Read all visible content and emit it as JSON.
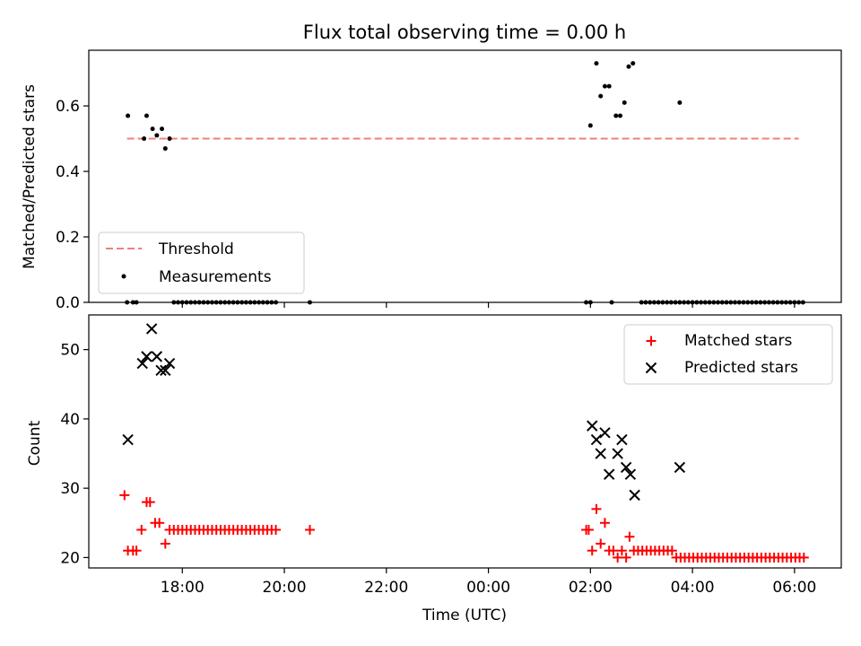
{
  "chart_data": [
    {
      "type": "scatter",
      "title": "Flux total observing time = 0.00 h",
      "ylabel": "Matched/Predicted stars",
      "ylim": [
        0,
        0.77
      ],
      "yticks": [
        0.0,
        0.2,
        0.4,
        0.6
      ],
      "ytick_labels": [
        "0.0",
        "0.2",
        "0.4",
        "0.6"
      ],
      "legend_position": "lower-left",
      "threshold": {
        "name": "Threshold",
        "value": 0.5,
        "x_range": [
          "16:55",
          "06:05"
        ],
        "color": "#f07f7f"
      },
      "series": [
        {
          "name": "Measurements",
          "color": "#000000",
          "points": [
            [
              "16:56",
              0.57
            ],
            [
              "17:15",
              0.5
            ],
            [
              "17:18",
              0.57
            ],
            [
              "17:25",
              0.53
            ],
            [
              "17:30",
              0.51
            ],
            [
              "17:36",
              0.53
            ],
            [
              "17:40",
              0.47
            ],
            [
              "17:45",
              0.5
            ],
            [
              "02:00",
              0.54
            ],
            [
              "02:07",
              0.73
            ],
            [
              "02:12",
              0.63
            ],
            [
              "02:17",
              0.66
            ],
            [
              "02:22",
              0.66
            ],
            [
              "02:30",
              0.57
            ],
            [
              "02:35",
              0.57
            ],
            [
              "02:40",
              0.61
            ],
            [
              "02:45",
              0.72
            ],
            [
              "02:50",
              0.73
            ],
            [
              "03:45",
              0.61
            ],
            [
              "16:55",
              0.0
            ],
            [
              "17:02",
              0.0
            ],
            [
              "17:06",
              0.0
            ],
            [
              "17:50",
              0.0
            ],
            [
              "17:55",
              0.0
            ],
            [
              "18:00",
              0.0
            ],
            [
              "18:05",
              0.0
            ],
            [
              "18:10",
              0.0
            ],
            [
              "18:15",
              0.0
            ],
            [
              "18:20",
              0.0
            ],
            [
              "18:25",
              0.0
            ],
            [
              "18:30",
              0.0
            ],
            [
              "18:35",
              0.0
            ],
            [
              "18:40",
              0.0
            ],
            [
              "18:45",
              0.0
            ],
            [
              "18:50",
              0.0
            ],
            [
              "18:55",
              0.0
            ],
            [
              "19:00",
              0.0
            ],
            [
              "19:05",
              0.0
            ],
            [
              "19:10",
              0.0
            ],
            [
              "19:15",
              0.0
            ],
            [
              "19:20",
              0.0
            ],
            [
              "19:25",
              0.0
            ],
            [
              "19:30",
              0.0
            ],
            [
              "19:35",
              0.0
            ],
            [
              "19:40",
              0.0
            ],
            [
              "19:45",
              0.0
            ],
            [
              "19:50",
              0.0
            ],
            [
              "20:30",
              0.0
            ],
            [
              "01:55",
              0.0
            ],
            [
              "02:00",
              0.0
            ],
            [
              "02:25",
              0.0
            ],
            [
              "03:00",
              0.0
            ],
            [
              "03:05",
              0.0
            ],
            [
              "03:10",
              0.0
            ],
            [
              "03:15",
              0.0
            ],
            [
              "03:20",
              0.0
            ],
            [
              "03:25",
              0.0
            ],
            [
              "03:30",
              0.0
            ],
            [
              "03:35",
              0.0
            ],
            [
              "03:40",
              0.0
            ],
            [
              "03:45",
              0.0
            ],
            [
              "03:50",
              0.0
            ],
            [
              "03:55",
              0.0
            ],
            [
              "04:00",
              0.0
            ],
            [
              "04:05",
              0.0
            ],
            [
              "04:10",
              0.0
            ],
            [
              "04:15",
              0.0
            ],
            [
              "04:20",
              0.0
            ],
            [
              "04:25",
              0.0
            ],
            [
              "04:30",
              0.0
            ],
            [
              "04:35",
              0.0
            ],
            [
              "04:40",
              0.0
            ],
            [
              "04:45",
              0.0
            ],
            [
              "04:50",
              0.0
            ],
            [
              "04:55",
              0.0
            ],
            [
              "05:00",
              0.0
            ],
            [
              "05:05",
              0.0
            ],
            [
              "05:10",
              0.0
            ],
            [
              "05:15",
              0.0
            ],
            [
              "05:20",
              0.0
            ],
            [
              "05:25",
              0.0
            ],
            [
              "05:30",
              0.0
            ],
            [
              "05:35",
              0.0
            ],
            [
              "05:40",
              0.0
            ],
            [
              "05:45",
              0.0
            ],
            [
              "05:50",
              0.0
            ],
            [
              "05:55",
              0.0
            ],
            [
              "06:00",
              0.0
            ],
            [
              "06:05",
              0.0
            ],
            [
              "06:10",
              0.0
            ]
          ]
        }
      ]
    },
    {
      "type": "scatter",
      "xlabel": "Time (UTC)",
      "ylabel": "Count",
      "ylim": [
        18.5,
        55
      ],
      "yticks": [
        20,
        30,
        40,
        50
      ],
      "ytick_labels": [
        "20",
        "30",
        "40",
        "50"
      ],
      "x_range": [
        "16:10",
        "06:55"
      ],
      "xticks": [
        "18:00",
        "20:00",
        "22:00",
        "00:00",
        "02:00",
        "04:00",
        "06:00"
      ],
      "xtick_labels": [
        "18:00",
        "20:00",
        "22:00",
        "00:00",
        "02:00",
        "04:00",
        "06:00"
      ],
      "legend_position": "top-right",
      "series": [
        {
          "name": "Matched stars",
          "marker": "plus",
          "color": "#ff0000",
          "points": [
            [
              "16:52",
              29
            ],
            [
              "16:56",
              21
            ],
            [
              "17:02",
              21
            ],
            [
              "17:06",
              21
            ],
            [
              "17:12",
              24
            ],
            [
              "17:18",
              28
            ],
            [
              "17:22",
              28
            ],
            [
              "17:28",
              25
            ],
            [
              "17:33",
              25
            ],
            [
              "17:40",
              22
            ],
            [
              "17:45",
              24
            ],
            [
              "17:50",
              24
            ],
            [
              "17:55",
              24
            ],
            [
              "18:00",
              24
            ],
            [
              "18:05",
              24
            ],
            [
              "18:10",
              24
            ],
            [
              "18:15",
              24
            ],
            [
              "18:20",
              24
            ],
            [
              "18:25",
              24
            ],
            [
              "18:30",
              24
            ],
            [
              "18:35",
              24
            ],
            [
              "18:40",
              24
            ],
            [
              "18:45",
              24
            ],
            [
              "18:50",
              24
            ],
            [
              "18:55",
              24
            ],
            [
              "19:00",
              24
            ],
            [
              "19:05",
              24
            ],
            [
              "19:10",
              24
            ],
            [
              "19:15",
              24
            ],
            [
              "19:20",
              24
            ],
            [
              "19:25",
              24
            ],
            [
              "19:30",
              24
            ],
            [
              "19:35",
              24
            ],
            [
              "19:40",
              24
            ],
            [
              "19:45",
              24
            ],
            [
              "19:50",
              24
            ],
            [
              "20:30",
              24
            ],
            [
              "01:55",
              24
            ],
            [
              "01:58",
              24
            ],
            [
              "02:02",
              21
            ],
            [
              "02:07",
              27
            ],
            [
              "02:12",
              22
            ],
            [
              "02:17",
              25
            ],
            [
              "02:22",
              21
            ],
            [
              "02:27",
              21
            ],
            [
              "02:32",
              20
            ],
            [
              "02:37",
              21
            ],
            [
              "02:42",
              20
            ],
            [
              "02:46",
              23
            ],
            [
              "02:51",
              21
            ],
            [
              "02:56",
              21
            ],
            [
              "03:01",
              21
            ],
            [
              "03:06",
              21
            ],
            [
              "03:11",
              21
            ],
            [
              "03:16",
              21
            ],
            [
              "03:21",
              21
            ],
            [
              "03:26",
              21
            ],
            [
              "03:31",
              21
            ],
            [
              "03:36",
              21
            ],
            [
              "03:41",
              20
            ],
            [
              "03:46",
              20
            ],
            [
              "03:51",
              20
            ],
            [
              "03:56",
              20
            ],
            [
              "04:01",
              20
            ],
            [
              "04:06",
              20
            ],
            [
              "04:11",
              20
            ],
            [
              "04:16",
              20
            ],
            [
              "04:21",
              20
            ],
            [
              "04:26",
              20
            ],
            [
              "04:31",
              20
            ],
            [
              "04:36",
              20
            ],
            [
              "04:41",
              20
            ],
            [
              "04:46",
              20
            ],
            [
              "04:51",
              20
            ],
            [
              "04:56",
              20
            ],
            [
              "05:01",
              20
            ],
            [
              "05:06",
              20
            ],
            [
              "05:11",
              20
            ],
            [
              "05:16",
              20
            ],
            [
              "05:21",
              20
            ],
            [
              "05:26",
              20
            ],
            [
              "05:31",
              20
            ],
            [
              "05:36",
              20
            ],
            [
              "05:41",
              20
            ],
            [
              "05:46",
              20
            ],
            [
              "05:51",
              20
            ],
            [
              "05:56",
              20
            ],
            [
              "06:01",
              20
            ],
            [
              "06:06",
              20
            ],
            [
              "06:11",
              20
            ]
          ]
        },
        {
          "name": "Predicted stars",
          "marker": "x",
          "color": "#000000",
          "points": [
            [
              "16:56",
              37
            ],
            [
              "17:13",
              48
            ],
            [
              "17:18",
              49
            ],
            [
              "17:24",
              53
            ],
            [
              "17:30",
              49
            ],
            [
              "17:35",
              47
            ],
            [
              "17:40",
              47
            ],
            [
              "17:45",
              48
            ],
            [
              "02:02",
              39
            ],
            [
              "02:07",
              37
            ],
            [
              "02:12",
              35
            ],
            [
              "02:17",
              38
            ],
            [
              "02:22",
              32
            ],
            [
              "02:32",
              35
            ],
            [
              "02:37",
              37
            ],
            [
              "02:42",
              33
            ],
            [
              "02:47",
              32
            ],
            [
              "02:52",
              29
            ],
            [
              "03:45",
              33
            ]
          ]
        }
      ]
    }
  ]
}
